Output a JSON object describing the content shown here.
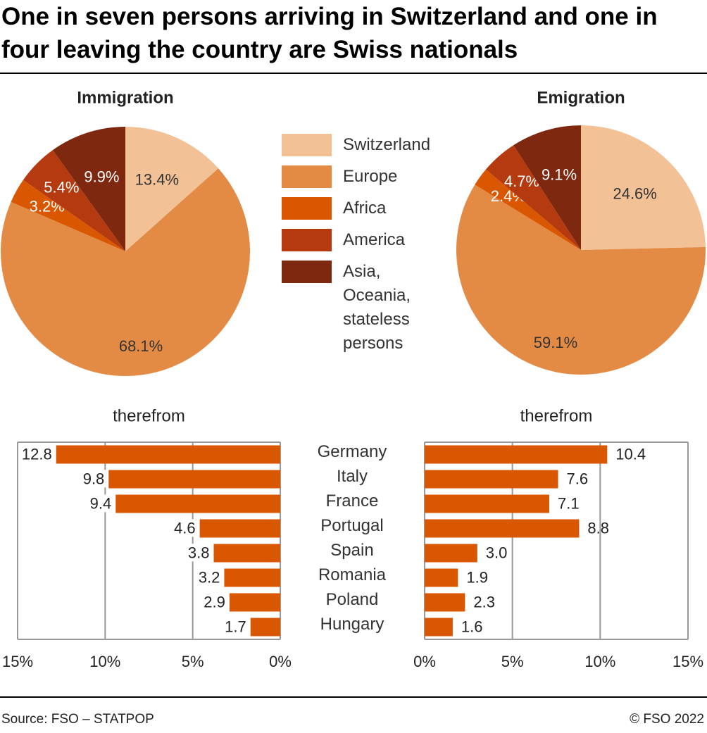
{
  "header": {
    "title": "One in seven persons arriving in Switzerland and one in four leaving the country are Swiss nationals"
  },
  "footer": {
    "source": "Source: FSO – STATPOP",
    "copyright": "© FSO 2022"
  },
  "chart_data": [
    {
      "type": "pie",
      "title": "Immigration",
      "categories": [
        "Switzerland",
        "Europe",
        "Africa",
        "America",
        "Asia, Oceania, stateless persons"
      ],
      "values": [
        13.4,
        68.1,
        3.2,
        5.4,
        9.9
      ],
      "value_labels": [
        "13.4%",
        "68.1%",
        "3.2%",
        "5.4%",
        "9.9%"
      ],
      "colors": [
        "#f2c195",
        "#e38b45",
        "#d95700",
        "#b53a0f",
        "#7e2810"
      ],
      "legend": "center"
    },
    {
      "type": "pie",
      "title": "Emigration",
      "values": [
        24.6,
        59.1,
        2.4,
        4.7,
        9.1
      ],
      "value_labels": [
        "24.6%",
        "59.1%",
        "2.4%",
        "4.7%",
        "9.1%"
      ],
      "colors": [
        "#f2c195",
        "#e38b45",
        "#d95700",
        "#b53a0f",
        "#7e2810"
      ]
    },
    {
      "type": "hbar",
      "subtitle": "therefrom",
      "categories": [
        "Germany",
        "Italy",
        "France",
        "Portugal",
        "Spain",
        "Romania",
        "Poland",
        "Hungary"
      ],
      "values": [
        12.8,
        9.8,
        9.4,
        4.6,
        3.8,
        3.2,
        2.9,
        1.7
      ],
      "color": "#d95700",
      "xlim": [
        15,
        0
      ],
      "xticks": [
        {
          "value": 15,
          "label": "15%"
        },
        {
          "value": 10,
          "label": "10%"
        },
        {
          "value": 5,
          "label": "5%"
        },
        {
          "value": 0,
          "label": "0%"
        }
      ],
      "grid": true
    },
    {
      "type": "hbar",
      "subtitle": "therefrom",
      "values": [
        10.4,
        7.6,
        7.1,
        8.8,
        3.0,
        1.9,
        2.3,
        1.6
      ],
      "value_labels": [
        "10.4",
        "7.6",
        "7.1",
        "8.8",
        "3.0",
        "1.9",
        "2.3",
        "1.6"
      ],
      "color": "#d95700",
      "xlim": [
        0,
        15
      ],
      "xticks": [
        {
          "value": 0,
          "label": "0%"
        },
        {
          "value": 5,
          "label": "5%"
        },
        {
          "value": 10,
          "label": "10%"
        },
        {
          "value": 15,
          "label": "15%"
        }
      ],
      "grid": true
    }
  ]
}
